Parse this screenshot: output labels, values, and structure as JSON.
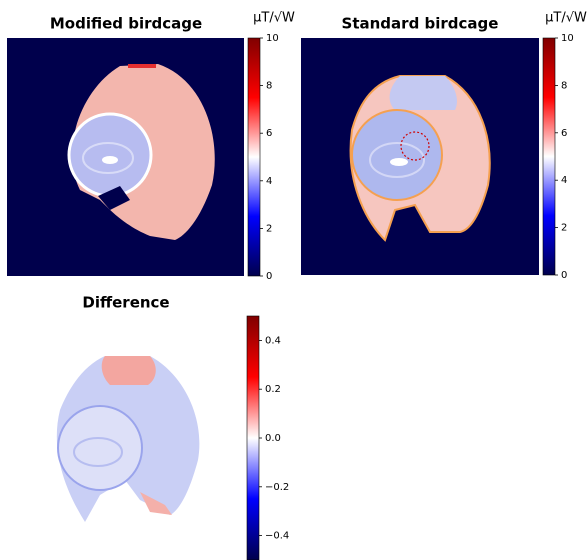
{
  "chart_data": [
    {
      "type": "heatmap",
      "title": "Modified birdcage",
      "unit": "μT/√W",
      "clim": [
        0,
        10
      ],
      "cticks": [
        0,
        2,
        4,
        6,
        8,
        10
      ]
    },
    {
      "type": "heatmap",
      "title": "Standard birdcage",
      "unit": "μT/√W",
      "clim": [
        0,
        10
      ],
      "cticks": [
        0,
        2,
        4,
        6,
        8,
        10
      ]
    },
    {
      "type": "heatmap",
      "title": "Difference",
      "clim": [
        -0.5,
        0.5
      ],
      "cticks": [
        {
          "value": -0.4,
          "label": "−0.4"
        },
        {
          "value": -0.2,
          "label": "−0.2"
        },
        {
          "value": 0,
          "label": "0.0"
        },
        0.2,
        0.4
      ]
    }
  ]
}
